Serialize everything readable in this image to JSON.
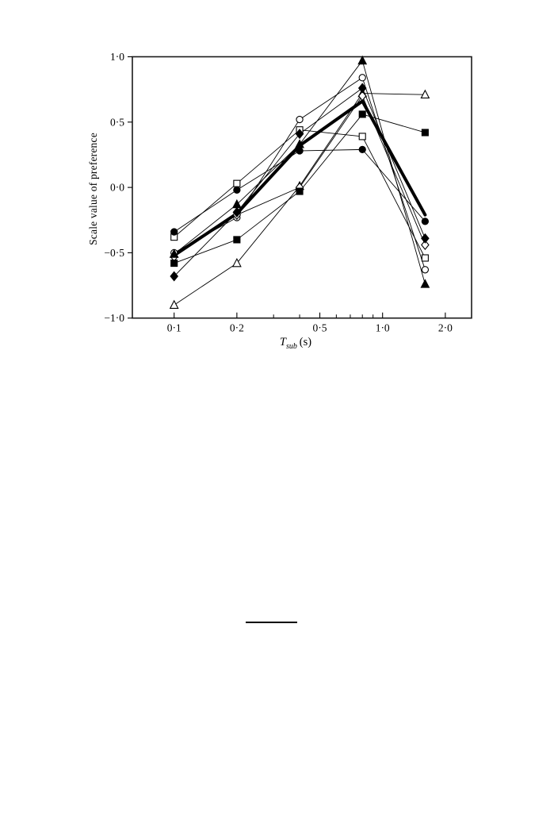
{
  "colors": {
    "ink": "#000000",
    "frame": "#1a1a1a",
    "background": "#ffffff"
  },
  "figure": {
    "y_axis_label": "Scale value of preference",
    "x_axis_label": {
      "symbol": "T",
      "subscript": "sub",
      "unit": "(s)"
    }
  },
  "chart_data": {
    "type": "line",
    "title": "",
    "xlabel": "T_sub (s)",
    "ylabel": "Scale value of preference",
    "x_scale": "log",
    "xlim": [
      0.063,
      2.66
    ],
    "ylim": [
      -1.0,
      1.0
    ],
    "grid": false,
    "legend": "none",
    "x": [
      0.1,
      0.2,
      0.4,
      0.8,
      1.6
    ],
    "x_ticks_major": [
      {
        "value": 0.1,
        "label": "0·1"
      },
      {
        "value": 0.2,
        "label": "0·2"
      },
      {
        "value": 0.5,
        "label": "0·5"
      },
      {
        "value": 1.0,
        "label": "1·0"
      },
      {
        "value": 2.0,
        "label": "2·0"
      }
    ],
    "x_ticks_minor": [
      0.3,
      0.4,
      0.6,
      0.7,
      0.8,
      0.9
    ],
    "y_ticks": [
      {
        "value": 1.0,
        "label": "1·0"
      },
      {
        "value": 0.5,
        "label": "0·5"
      },
      {
        "value": 0.0,
        "label": "0·0"
      },
      {
        "value": -0.5,
        "label": "−0·5"
      },
      {
        "value": -1.0,
        "label": "−1·0"
      }
    ],
    "series": [
      {
        "name": "open-circle",
        "marker": "circle",
        "fill": "open",
        "line_width": 0.9,
        "values": [
          -0.5,
          -0.23,
          0.52,
          0.84,
          -0.63
        ]
      },
      {
        "name": "open-square",
        "marker": "square",
        "fill": "open",
        "line_width": 0.9,
        "values": [
          -0.38,
          0.03,
          0.44,
          0.39,
          -0.54
        ]
      },
      {
        "name": "open-triangle",
        "marker": "triangle",
        "fill": "open",
        "line_width": 0.9,
        "values": [
          -0.9,
          -0.58,
          0.01,
          0.72,
          0.71
        ]
      },
      {
        "name": "open-diamond",
        "marker": "diamond",
        "fill": "open",
        "line_width": 0.9,
        "values": [
          -0.53,
          -0.21,
          0.0,
          0.7,
          -0.44
        ]
      },
      {
        "name": "filled-circle",
        "marker": "circle",
        "fill": "filled",
        "line_width": 0.9,
        "values": [
          -0.34,
          -0.02,
          0.28,
          0.29,
          -0.26
        ]
      },
      {
        "name": "filled-square",
        "marker": "square",
        "fill": "filled",
        "line_width": 0.9,
        "values": [
          -0.58,
          -0.4,
          -0.03,
          0.56,
          0.42
        ]
      },
      {
        "name": "filled-diamond",
        "marker": "diamond",
        "fill": "filled",
        "line_width": 0.9,
        "values": [
          -0.68,
          -0.19,
          0.41,
          0.76,
          -0.39
        ]
      },
      {
        "name": "filled-triangle",
        "marker": "triangle",
        "fill": "filled",
        "line_width": 0.9,
        "values": [
          -0.51,
          -0.13,
          0.33,
          0.97,
          -0.74
        ]
      },
      {
        "name": "mean",
        "marker": "none",
        "fill": "none",
        "line_width": 4.0,
        "values": [
          -0.52,
          -0.2,
          0.32,
          0.66,
          -0.21
        ]
      }
    ]
  }
}
